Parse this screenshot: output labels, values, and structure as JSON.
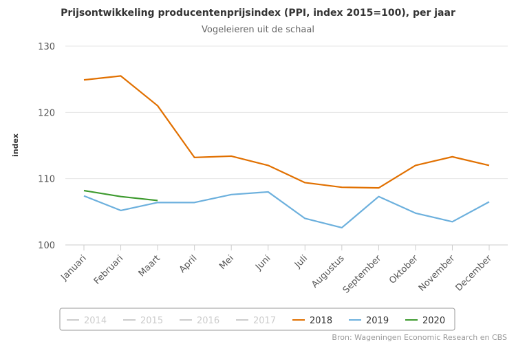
{
  "chart_data": {
    "type": "line",
    "title": "Prijsontwikkeling producentenprijsindex (PPI, index 2015=100), per jaar",
    "subtitle": "Vogeleieren uit de schaal",
    "y_label": "index",
    "source": "Bron: Wageningen Economic Research en CBS",
    "categories": [
      "Januari",
      "Februari",
      "Maart",
      "April",
      "Mei",
      "Juni",
      "Juli",
      "Augustus",
      "September",
      "Oktober",
      "November",
      "December"
    ],
    "ylim": [
      100,
      130
    ],
    "yticks": [
      100,
      110,
      120,
      130
    ],
    "grid": true,
    "series": [
      {
        "name": "2014",
        "color": "#cccccc",
        "visible": false,
        "values": [
          null,
          null,
          null,
          null,
          null,
          null,
          null,
          null,
          null,
          null,
          null,
          null
        ]
      },
      {
        "name": "2015",
        "color": "#cccccc",
        "visible": false,
        "values": [
          null,
          null,
          null,
          null,
          null,
          null,
          null,
          null,
          null,
          null,
          null,
          null
        ]
      },
      {
        "name": "2016",
        "color": "#cccccc",
        "visible": false,
        "values": [
          null,
          null,
          null,
          null,
          null,
          null,
          null,
          null,
          null,
          null,
          null,
          null
        ]
      },
      {
        "name": "2017",
        "color": "#cccccc",
        "visible": false,
        "values": [
          null,
          null,
          null,
          null,
          null,
          null,
          null,
          null,
          null,
          null,
          null,
          null
        ]
      },
      {
        "name": "2018",
        "color": "#e17000",
        "visible": true,
        "values": [
          124.9,
          125.5,
          121,
          113.2,
          113.4,
          112,
          109.4,
          108.7,
          108.6,
          112,
          113.3,
          112
        ]
      },
      {
        "name": "2019",
        "color": "#6cb0dd",
        "visible": true,
        "values": [
          107.4,
          105.2,
          106.4,
          106.4,
          107.6,
          108,
          104,
          102.6,
          107.3,
          104.8,
          103.5,
          106.5
        ]
      },
      {
        "name": "2020",
        "color": "#3d9a2e",
        "visible": true,
        "values": [
          108.2,
          107.3,
          106.7,
          null,
          null,
          null,
          null,
          null,
          null,
          null,
          null,
          null
        ]
      }
    ]
  }
}
